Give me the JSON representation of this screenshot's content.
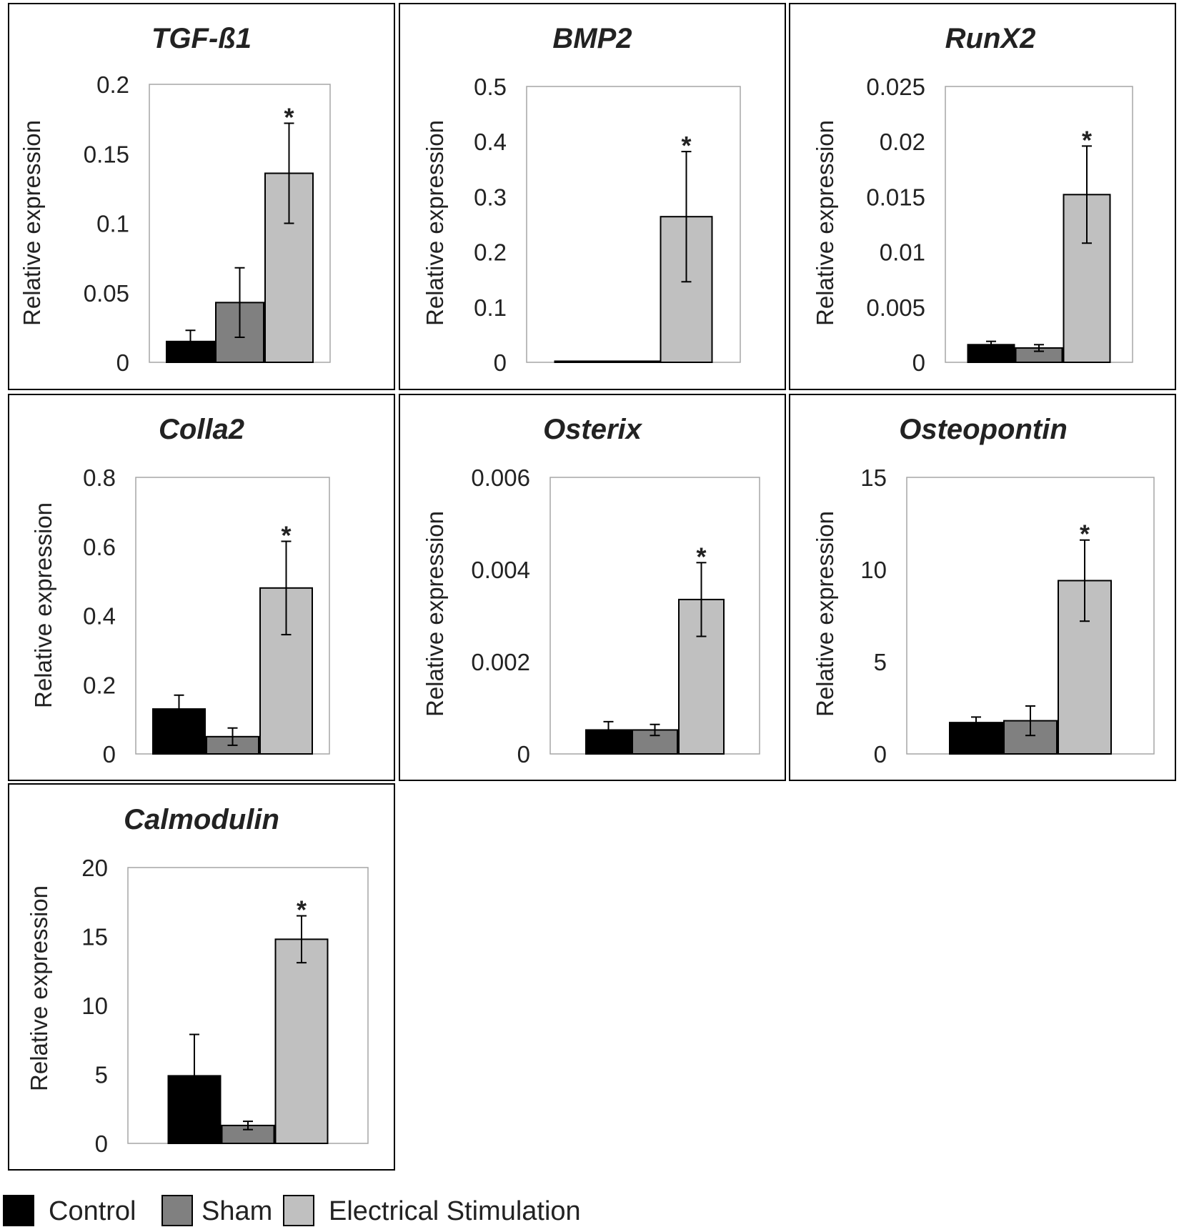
{
  "groups": [
    "Control",
    "Sham",
    "Electrical Stimulation"
  ],
  "colors": {
    "Control": "#000000",
    "Sham": "#808080",
    "Electrical Stimulation": "#c0c0c0",
    "frame": "#000000",
    "plot_border": "#a6a6a6"
  },
  "chart_data": [
    {
      "type": "bar",
      "title": "TGF-ß1",
      "ylabel": "Relative expression",
      "categories": [
        "Control",
        "Sham",
        "Electrical Stimulation"
      ],
      "values": [
        0.015,
        0.043,
        0.136
      ],
      "errors": [
        0.008,
        0.025,
        0.036
      ],
      "ylim": [
        0,
        0.2
      ],
      "yticks": [
        "0",
        "0.05",
        "0.1",
        "0.15",
        "0.2"
      ],
      "significance": [
        "",
        "",
        "*"
      ]
    },
    {
      "type": "bar",
      "title": "BMP2",
      "ylabel": "Relative expression",
      "categories": [
        "Control",
        "Sham",
        "Electrical Stimulation"
      ],
      "values": [
        0.002,
        0.002,
        0.264
      ],
      "errors": [
        0,
        0,
        0.118
      ],
      "ylim": [
        0,
        0.5
      ],
      "yticks": [
        "0",
        "0.1",
        "0.2",
        "0.3",
        "0.4",
        "0.5"
      ],
      "significance": [
        "",
        "",
        "*"
      ]
    },
    {
      "type": "bar",
      "title": "RunX2",
      "ylabel": "Relative expression",
      "categories": [
        "Control",
        "Sham",
        "Electrical Stimulation"
      ],
      "values": [
        0.0016,
        0.0013,
        0.0152
      ],
      "errors": [
        0.0003,
        0.0003,
        0.0044
      ],
      "ylim": [
        0,
        0.025
      ],
      "yticks": [
        "0",
        "0.005",
        "0.01",
        "0.015",
        "0.02",
        "0.025"
      ],
      "significance": [
        "",
        "",
        "*"
      ]
    },
    {
      "type": "bar",
      "title": "Colla2",
      "ylabel": "Relative expression",
      "categories": [
        "Control",
        "Sham",
        "Electrical Stimulation"
      ],
      "values": [
        0.13,
        0.05,
        0.48
      ],
      "errors": [
        0.04,
        0.025,
        0.135
      ],
      "ylim": [
        0,
        0.8
      ],
      "yticks": [
        "0",
        "0.2",
        "0.4",
        "0.6",
        "0.8"
      ],
      "significance": [
        "",
        "",
        "*"
      ]
    },
    {
      "type": "bar",
      "title": "Osterix",
      "ylabel": "Relative expression",
      "categories": [
        "Control",
        "Sham",
        "Electrical Stimulation"
      ],
      "values": [
        0.00052,
        0.00052,
        0.00335
      ],
      "errors": [
        0.00018,
        0.00012,
        0.0008
      ],
      "ylim": [
        0,
        0.006
      ],
      "yticks": [
        "0",
        "0.002",
        "0.004",
        "0.006"
      ],
      "significance": [
        "",
        "",
        "*"
      ]
    },
    {
      "type": "bar",
      "title": "Osteopontin",
      "ylabel": "Relative  expression",
      "categories": [
        "Control",
        "Sham",
        "Electrical Stimulation"
      ],
      "values": [
        1.7,
        1.8,
        9.4
      ],
      "errors": [
        0.3,
        0.8,
        2.2
      ],
      "ylim": [
        0,
        15
      ],
      "yticks": [
        "0",
        "5",
        "10",
        "15"
      ],
      "significance": [
        "",
        "",
        "*"
      ]
    },
    {
      "type": "bar",
      "title": "Calmodulin",
      "ylabel": "Relative expression",
      "categories": [
        "Control",
        "Sham",
        "Electrical Stimulation"
      ],
      "values": [
        4.9,
        1.3,
        14.8
      ],
      "errors": [
        3.0,
        0.3,
        1.7
      ],
      "ylim": [
        0,
        20
      ],
      "yticks": [
        "0",
        "5",
        "10",
        "15",
        "20"
      ],
      "significance": [
        "",
        "",
        "*"
      ]
    }
  ]
}
